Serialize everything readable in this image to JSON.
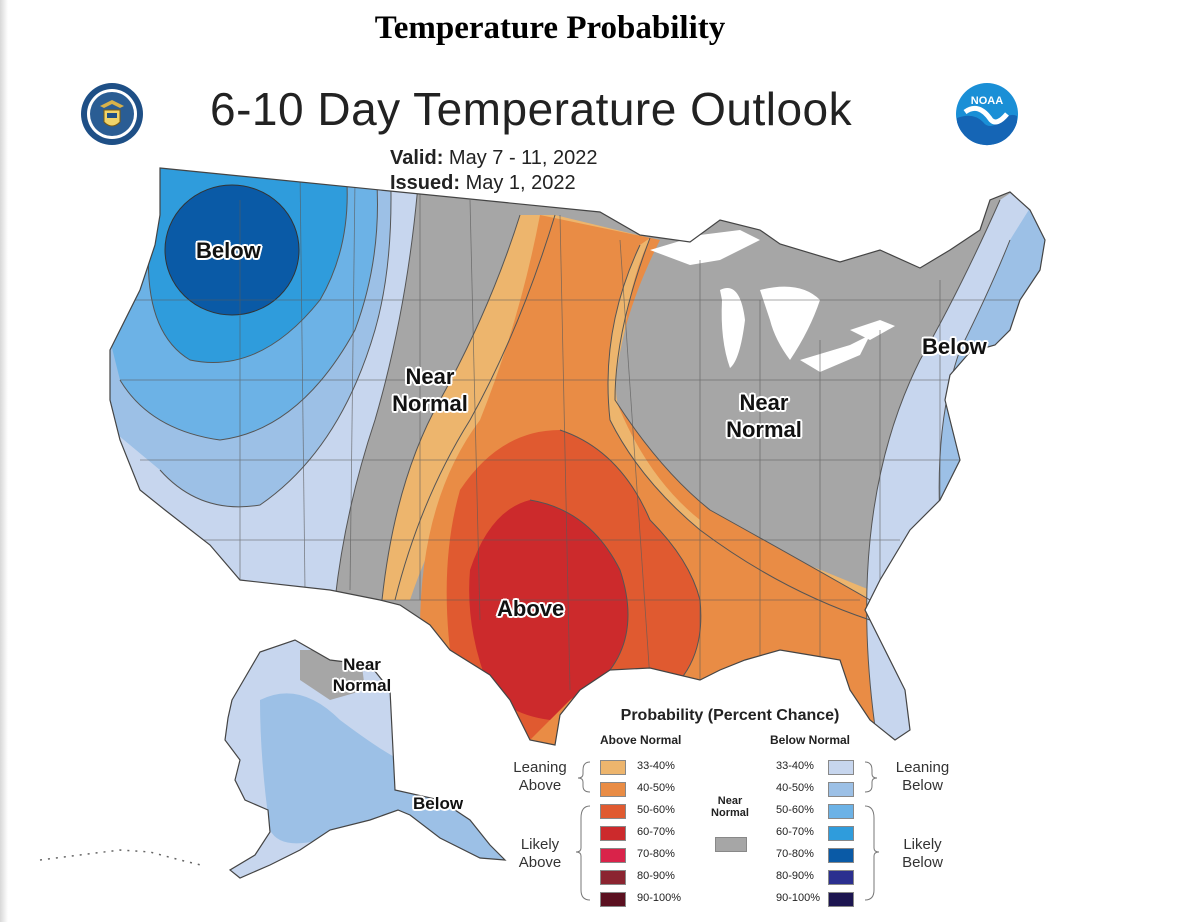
{
  "page_title": "Temperature Probability",
  "map": {
    "title": "6-10 Day Temperature Outlook",
    "valid_label": "Valid:",
    "valid_value": "May 7 - 11, 2022",
    "issued_label": "Issued:",
    "issued_value": "May 1, 2022",
    "logo_left_icon": "department-of-commerce-seal",
    "logo_right_icon": "noaa-logo",
    "logo_right_text": "NOAA"
  },
  "regions": {
    "nw": "Below",
    "west_near_1": "Near",
    "west_near_2": "Normal",
    "east_near_1": "Near",
    "east_near_2": "Normal",
    "ne": "Below",
    "south": "Above",
    "ak_near_1": "Near",
    "ak_near_2": "Normal",
    "ak_below": "Below"
  },
  "legend": {
    "title": "Probability (Percent Chance)",
    "above_header": "Above Normal",
    "below_header": "Below Normal",
    "leaning_above_1": "Leaning",
    "leaning_above_2": "Above",
    "likely_above_1": "Likely",
    "likely_above_2": "Above",
    "leaning_below_1": "Leaning",
    "leaning_below_2": "Below",
    "likely_below_1": "Likely",
    "likely_below_2": "Below",
    "near_1": "Near",
    "near_2": "Normal",
    "near_color": "#a6a6a6",
    "above": [
      {
        "label": "33-40%",
        "color": "#edb56d"
      },
      {
        "label": "40-50%",
        "color": "#e98c45"
      },
      {
        "label": "50-60%",
        "color": "#e05a30"
      },
      {
        "label": "60-70%",
        "color": "#cc2a2c"
      },
      {
        "label": "70-80%",
        "color": "#d9234a"
      },
      {
        "label": "80-90%",
        "color": "#8b2430"
      },
      {
        "label": "90-100%",
        "color": "#5b1020"
      }
    ],
    "below": [
      {
        "label": "33-40%",
        "color": "#c7d6ee"
      },
      {
        "label": "40-50%",
        "color": "#9cc0e6"
      },
      {
        "label": "50-60%",
        "color": "#6cb2e6"
      },
      {
        "label": "60-70%",
        "color": "#2f9cdc"
      },
      {
        "label": "70-80%",
        "color": "#0a5aa6"
      },
      {
        "label": "80-90%",
        "color": "#2b2f8f"
      },
      {
        "label": "90-100%",
        "color": "#1c1550"
      }
    ]
  }
}
